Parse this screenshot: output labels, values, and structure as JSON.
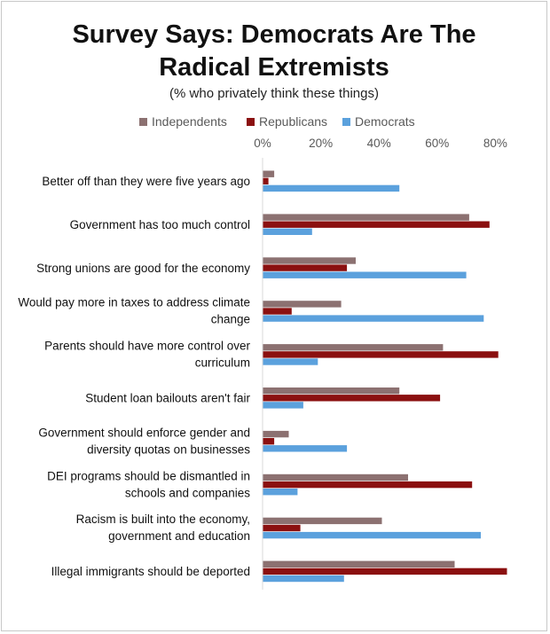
{
  "chart_data": {
    "type": "bar",
    "orientation": "horizontal",
    "title_lines": [
      "Survey Says: Democrats Are The",
      "Radical Extremists"
    ],
    "subtitle": "(% who privately think these things)",
    "x_axis": {
      "min": 0,
      "max": 0.85,
      "ticks": [
        0,
        0.2,
        0.4,
        0.6,
        0.8
      ],
      "tick_labels": [
        "0%",
        "20%",
        "40%",
        "60%",
        "80%"
      ],
      "position": "top"
    },
    "legend_position": "top",
    "categories": [
      [
        "Better off than they were five years ago"
      ],
      [
        "Government has too much control"
      ],
      [
        "Strong unions are good for the economy"
      ],
      [
        "Would pay more in taxes to address climate",
        "change"
      ],
      [
        "Parents should have more control over",
        "curriculum"
      ],
      [
        "Student loan bailouts aren't fair"
      ],
      [
        "Government should enforce gender and",
        "diversity quotas on businesses"
      ],
      [
        "DEI programs should be dismantled in",
        "schools and companies"
      ],
      [
        "Racism is built into the economy,",
        "government and education"
      ],
      [
        "Illegal immigrants should be deported"
      ]
    ],
    "series": [
      {
        "name": "Independents",
        "color": "#8c7171",
        "values": [
          0.04,
          0.71,
          0.32,
          0.27,
          0.62,
          0.47,
          0.09,
          0.5,
          0.41,
          0.66
        ]
      },
      {
        "name": "Republicans",
        "color": "#8b1010",
        "values": [
          0.02,
          0.78,
          0.29,
          0.1,
          0.81,
          0.61,
          0.04,
          0.72,
          0.13,
          0.84
        ]
      },
      {
        "name": "Democrats",
        "color": "#5ba1dd",
        "values": [
          0.47,
          0.17,
          0.7,
          0.76,
          0.19,
          0.14,
          0.29,
          0.12,
          0.75,
          0.28
        ]
      }
    ]
  }
}
